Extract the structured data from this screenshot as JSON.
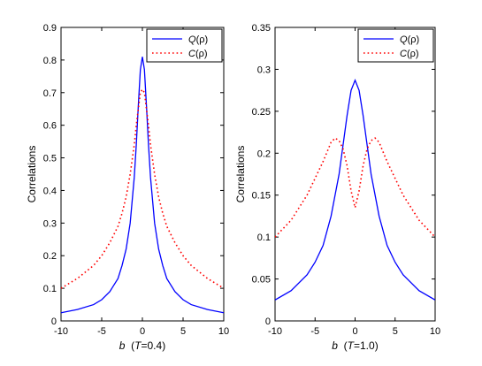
{
  "chart_data": [
    {
      "type": "line",
      "xlabel_main": "b",
      "xlabel_param": "(T=0.4)",
      "ylabel": "Correlations",
      "xlim": [
        -10,
        10
      ],
      "ylim": [
        0,
        0.9
      ],
      "xticks": [
        -10,
        -5,
        0,
        5,
        10
      ],
      "yticks": [
        0,
        0.1,
        0.2,
        0.3,
        0.4,
        0.5,
        0.6,
        0.7,
        0.8,
        0.9
      ],
      "ytick_labels": [
        "0",
        "0.1",
        "0.2",
        "0.3",
        "0.4",
        "0.5",
        "0.6",
        "0.7",
        "0.8",
        "0.9"
      ],
      "legend_position": "top-right",
      "series": [
        {
          "name": "Q(ρ)",
          "color": "#0000ff",
          "style": "solid",
          "x": [
            -10,
            -8,
            -6,
            -5,
            -4,
            -3,
            -2.5,
            -2,
            -1.5,
            -1,
            -0.75,
            -0.5,
            -0.25,
            0,
            0.25,
            0.5,
            0.75,
            1,
            1.5,
            2,
            2.5,
            3,
            4,
            5,
            6,
            8,
            10
          ],
          "y": [
            0.025,
            0.035,
            0.05,
            0.065,
            0.09,
            0.13,
            0.17,
            0.22,
            0.3,
            0.44,
            0.54,
            0.66,
            0.77,
            0.81,
            0.77,
            0.66,
            0.54,
            0.44,
            0.3,
            0.22,
            0.17,
            0.13,
            0.09,
            0.065,
            0.05,
            0.035,
            0.025
          ]
        },
        {
          "name": "C(ρ)",
          "color": "#ff0000",
          "style": "dotted",
          "x": [
            -10,
            -8,
            -6,
            -5,
            -4,
            -3,
            -2.5,
            -2,
            -1.5,
            -1,
            -0.75,
            -0.5,
            -0.25,
            0,
            0.25,
            0.5,
            0.75,
            1,
            1.5,
            2,
            2.5,
            3,
            4,
            5,
            6,
            8,
            10
          ],
          "y": [
            0.1,
            0.13,
            0.17,
            0.2,
            0.24,
            0.29,
            0.33,
            0.38,
            0.45,
            0.54,
            0.6,
            0.65,
            0.7,
            0.71,
            0.7,
            0.65,
            0.6,
            0.54,
            0.45,
            0.38,
            0.33,
            0.29,
            0.24,
            0.2,
            0.17,
            0.13,
            0.1
          ]
        }
      ]
    },
    {
      "type": "line",
      "xlabel_main": "b",
      "xlabel_param": "(T=1.0)",
      "ylabel": "Correlations",
      "xlim": [
        -10,
        10
      ],
      "ylim": [
        0,
        0.35
      ],
      "xticks": [
        -10,
        -5,
        0,
        5,
        10
      ],
      "yticks": [
        0,
        0.05,
        0.1,
        0.15,
        0.2,
        0.25,
        0.3,
        0.35
      ],
      "ytick_labels": [
        "0",
        "0.05",
        "0.1",
        "0.15",
        "0.2",
        "0.25",
        "0.3",
        "0.35"
      ],
      "legend_position": "top-right",
      "series": [
        {
          "name": "Q(ρ)",
          "color": "#0000ff",
          "style": "solid",
          "x": [
            -10,
            -8,
            -6,
            -5,
            -4,
            -3,
            -2,
            -1.5,
            -1,
            -0.5,
            0,
            0.5,
            1,
            1.5,
            2,
            3,
            4,
            5,
            6,
            8,
            10
          ],
          "y": [
            0.025,
            0.036,
            0.055,
            0.07,
            0.09,
            0.125,
            0.175,
            0.21,
            0.245,
            0.275,
            0.287,
            0.275,
            0.245,
            0.21,
            0.175,
            0.125,
            0.09,
            0.07,
            0.055,
            0.036,
            0.025
          ]
        },
        {
          "name": "C(ρ)",
          "color": "#ff0000",
          "style": "dotted",
          "x": [
            -10,
            -8,
            -6,
            -5,
            -4,
            -3,
            -2.5,
            -2,
            -1.5,
            -1,
            -0.5,
            0,
            0.5,
            1,
            1.5,
            2,
            2.5,
            3,
            4,
            5,
            6,
            8,
            10
          ],
          "y": [
            0.1,
            0.12,
            0.15,
            0.17,
            0.19,
            0.213,
            0.218,
            0.215,
            0.205,
            0.185,
            0.155,
            0.135,
            0.155,
            0.185,
            0.205,
            0.215,
            0.218,
            0.213,
            0.19,
            0.17,
            0.15,
            0.12,
            0.1
          ]
        }
      ]
    }
  ]
}
